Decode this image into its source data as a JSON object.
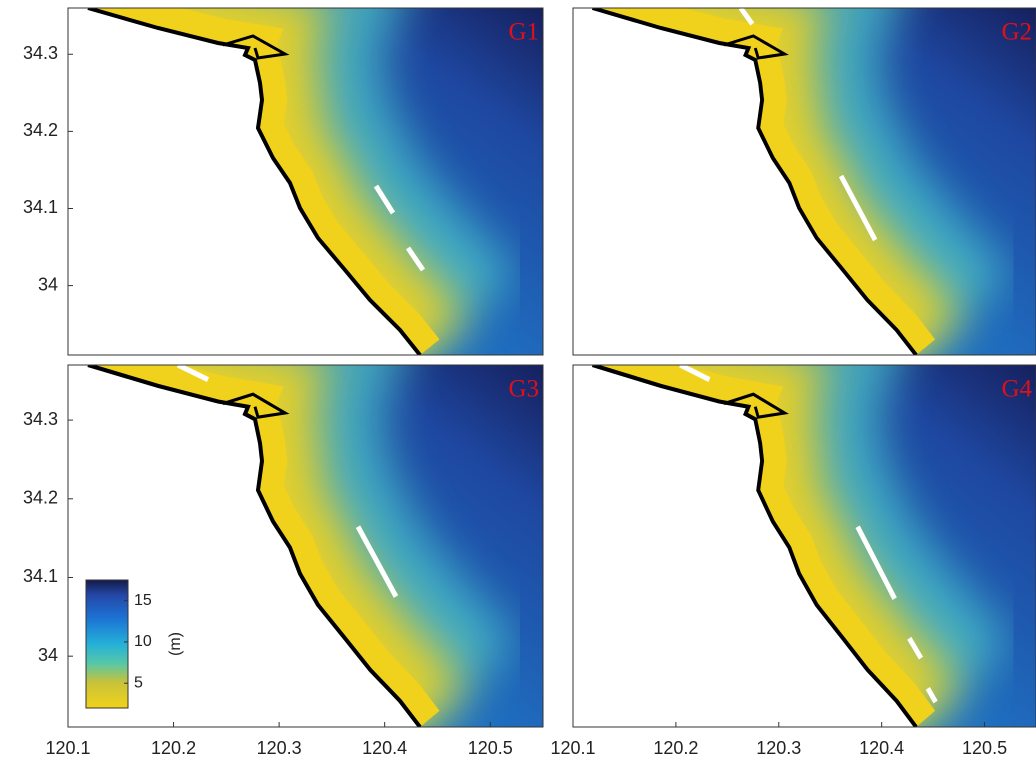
{
  "chart_data": [
    {
      "type": "map",
      "title": "G1",
      "xlim": [
        120.1,
        120.55
      ],
      "ylim": [
        33.91,
        34.36
      ],
      "yticks": [
        34,
        34.1,
        34.2,
        34.3
      ]
    },
    {
      "type": "map",
      "title": "G2",
      "xlim": [
        120.1,
        120.55
      ],
      "ylim": [
        33.91,
        34.36
      ]
    },
    {
      "type": "map",
      "title": "G3",
      "xlim": [
        120.1,
        120.55
      ],
      "ylim": [
        33.91,
        34.37
      ],
      "xticks": [
        120.1,
        120.2,
        120.3,
        120.4,
        120.5
      ],
      "yticks": [
        34,
        34.1,
        34.2,
        34.3
      ],
      "colorbar": {
        "label": "(m)",
        "lim": [
          2,
          17.5
        ],
        "ticks": [
          5,
          10,
          15
        ]
      }
    },
    {
      "type": "map",
      "title": "G4",
      "xlim": [
        120.1,
        120.55
      ],
      "ylim": [
        33.91,
        34.37
      ],
      "xticks": [
        120.1,
        120.2,
        120.3,
        120.4,
        120.5
      ]
    }
  ]
}
